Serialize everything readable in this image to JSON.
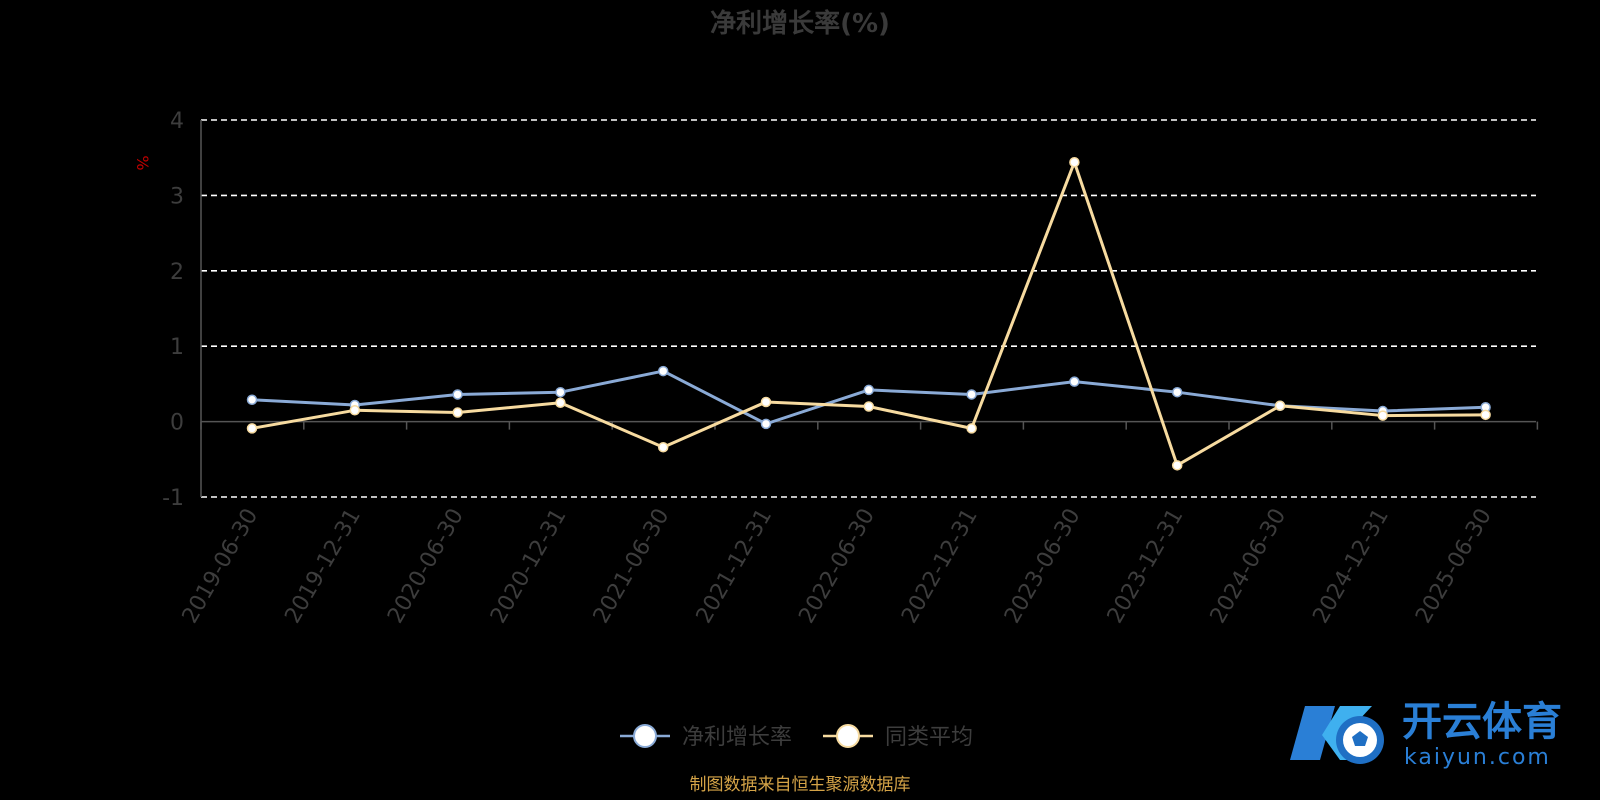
{
  "chart_data": {
    "type": "line",
    "title": "净利增长率(%)",
    "ylabel": "%",
    "ylim": [
      -1,
      4
    ],
    "yticks": [
      -1,
      0,
      1,
      2,
      3,
      4
    ],
    "grid": true,
    "legend_position": "bottom-center",
    "categories": [
      "2019-06-30",
      "2019-12-31",
      "2020-06-30",
      "2020-12-31",
      "2021-06-30",
      "2021-12-31",
      "2022-06-30",
      "2022-12-31",
      "2023-06-30",
      "2023-12-31",
      "2024-06-30",
      "2024-12-31",
      "2025-06-30"
    ],
    "series": [
      {
        "name": "净利增长率",
        "color": "#8aaad6",
        "values": [
          0.29,
          0.22,
          0.36,
          0.39,
          0.67,
          -0.03,
          0.42,
          0.36,
          0.53,
          0.39,
          0.21,
          0.14,
          0.19
        ]
      },
      {
        "name": "同类平均",
        "color": "#f7dba0",
        "values": [
          -0.09,
          0.15,
          0.12,
          0.25,
          -0.34,
          0.26,
          0.2,
          -0.09,
          3.44,
          -0.58,
          0.21,
          0.08,
          0.09
        ]
      }
    ]
  },
  "footer": {
    "source": "制图数据来自恒生聚源数据库"
  },
  "logo": {
    "name": "开云体育",
    "domain": "kaiyun.com"
  }
}
